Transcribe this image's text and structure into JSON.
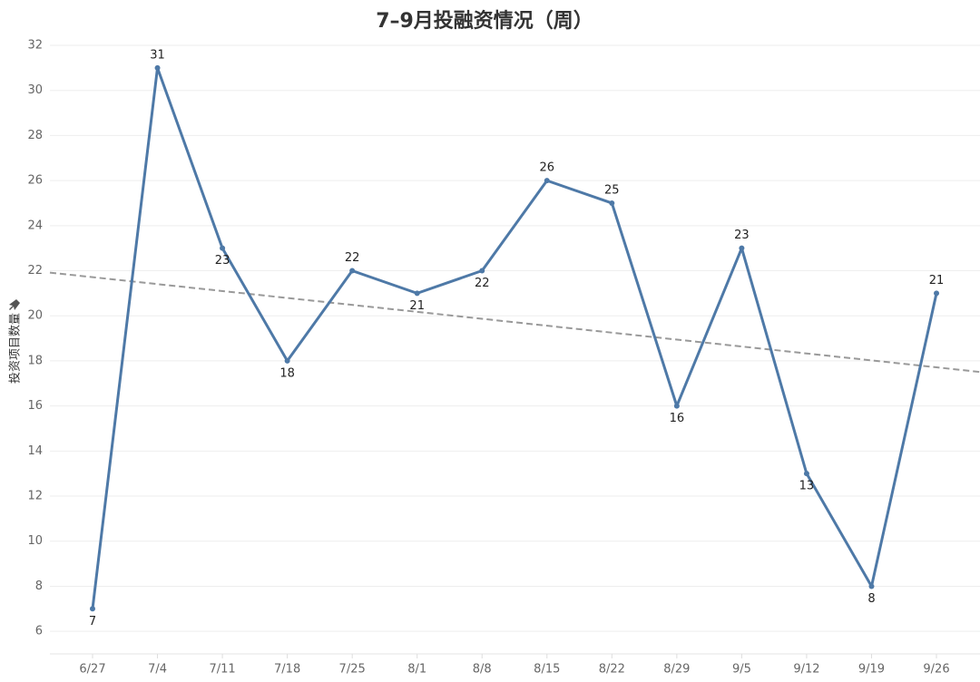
{
  "chart_data": {
    "type": "line",
    "title": "7–9月投融资情况（周）",
    "y_label": "投资项目数量",
    "categories": [
      "6/27",
      "7/4",
      "7/11",
      "7/18",
      "7/25",
      "8/1",
      "8/8",
      "8/15",
      "8/22",
      "8/29",
      "9/5",
      "9/12",
      "9/19",
      "9/26"
    ],
    "series": [
      {
        "name": "投资项目数量",
        "color": "#4e79a7",
        "values": [
          7,
          31,
          23,
          18,
          22,
          21,
          22,
          26,
          25,
          16,
          23,
          13,
          8,
          21
        ]
      }
    ],
    "ylim": [
      5,
      32
    ],
    "yticks": [
      6,
      8,
      10,
      12,
      14,
      16,
      18,
      20,
      22,
      24,
      26,
      28,
      30,
      32
    ],
    "grid": true,
    "trendline": "linear",
    "trend_color": "#999999"
  }
}
